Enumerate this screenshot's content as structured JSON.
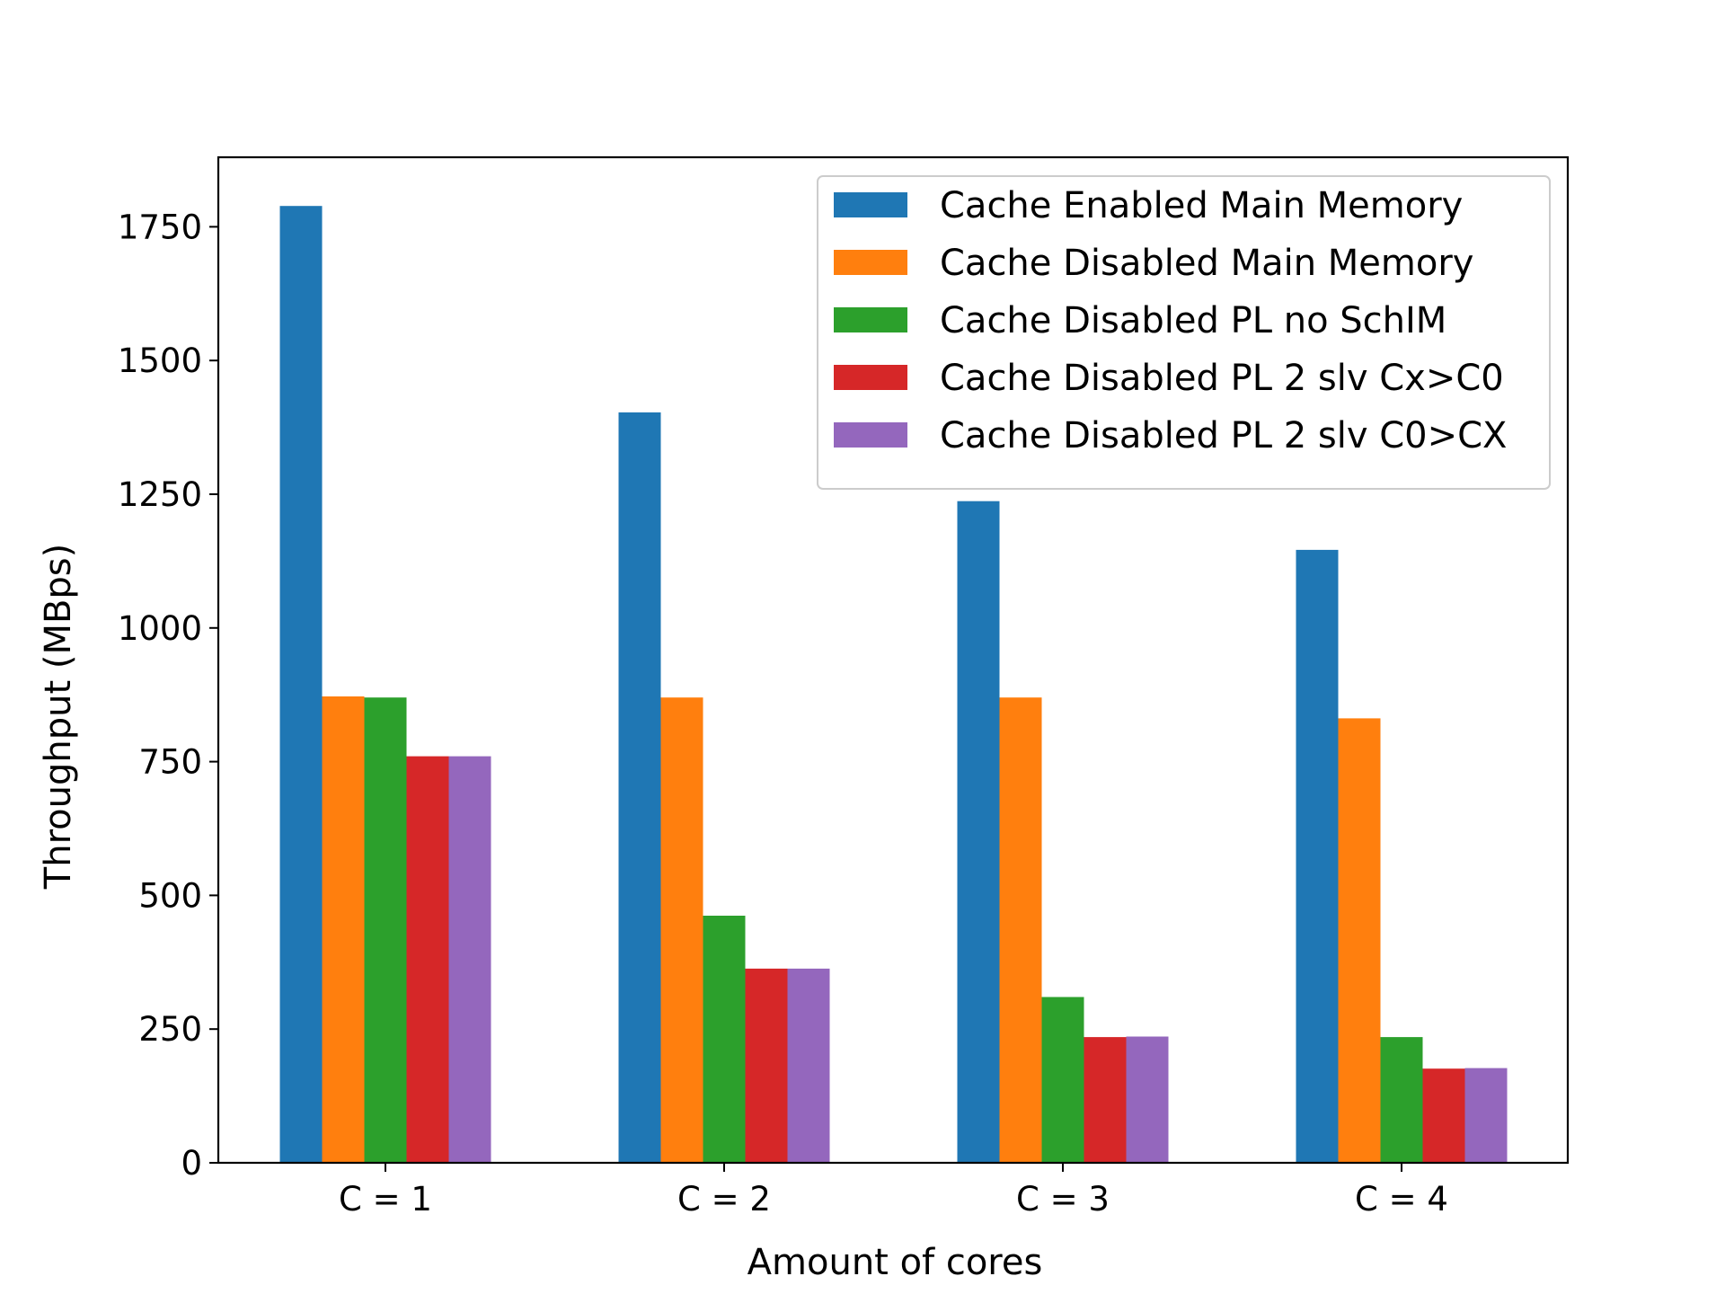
{
  "chart_data": {
    "type": "bar",
    "title": "",
    "xlabel": "Amount of cores",
    "ylabel": "Throughput (MBps)",
    "categories": [
      "C = 1",
      "C = 2",
      "C = 3",
      "C = 4"
    ],
    "ylim": [
      0,
      1880
    ],
    "yticks": [
      0,
      250,
      500,
      750,
      1000,
      1250,
      1500,
      1750
    ],
    "grid": false,
    "legend_position": "top-right",
    "series": [
      {
        "name": "Cache Enabled Main Memory",
        "color": "#1f77b4",
        "values": [
          1789,
          1403,
          1237,
          1146
        ]
      },
      {
        "name": "Cache Disabled Main Memory",
        "color": "#ff7f0e",
        "values": [
          872,
          870,
          870,
          831
        ]
      },
      {
        "name": "Cache Disabled PL no SchIM",
        "color": "#2ca02c",
        "values": [
          870,
          462,
          310,
          235
        ]
      },
      {
        "name": "Cache Disabled PL 2 slv Cx>C0",
        "color": "#d62728",
        "values": [
          760,
          363,
          235,
          176
        ]
      },
      {
        "name": "Cache Disabled PL 2 slv C0>CX",
        "color": "#9467bd",
        "values": [
          760,
          363,
          236,
          177
        ]
      }
    ]
  }
}
